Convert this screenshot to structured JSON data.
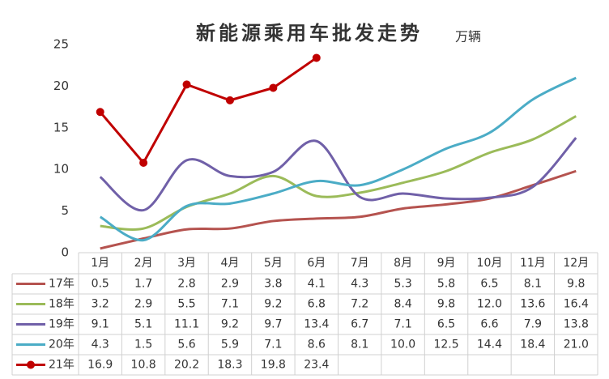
{
  "chart_data": {
    "type": "line",
    "title": "新能源乘用车批发走势",
    "subtitle": "万辆",
    "categories": [
      "1月",
      "2月",
      "3月",
      "4月",
      "5月",
      "6月",
      "7月",
      "8月",
      "9月",
      "10月",
      "11月",
      "12月"
    ],
    "series": [
      {
        "name": "17年",
        "color": "#b5534f",
        "smooth": true,
        "values": [
          0.5,
          1.7,
          2.8,
          2.9,
          3.8,
          4.1,
          4.3,
          5.3,
          5.8,
          6.5,
          8.1,
          9.8
        ]
      },
      {
        "name": "18年",
        "color": "#9bbb59",
        "smooth": true,
        "values": [
          3.2,
          2.9,
          5.5,
          7.1,
          9.2,
          6.8,
          7.2,
          8.4,
          9.8,
          12,
          13.6,
          16.4
        ],
        "value_labels": [
          "3.2",
          "2.9",
          "5.5",
          "7.1",
          "9.2",
          "6.8",
          "7.2",
          "8.4",
          "9.8",
          "12.0",
          "13.6",
          "16.4"
        ]
      },
      {
        "name": "19年",
        "color": "#7060a8",
        "smooth": true,
        "values": [
          9.1,
          5.1,
          11.1,
          9.2,
          9.7,
          13.4,
          6.7,
          7.1,
          6.5,
          6.6,
          7.9,
          13.8
        ]
      },
      {
        "name": "20年",
        "color": "#4bacc6",
        "smooth": true,
        "values": [
          4.3,
          1.5,
          5.6,
          5.9,
          7.1,
          8.6,
          8.1,
          10,
          12.5,
          14.4,
          18.4,
          21
        ],
        "value_labels": [
          "4.3",
          "1.5",
          "5.6",
          "5.9",
          "7.1",
          "8.6",
          "8.1",
          "10.0",
          "12.5",
          "14.4",
          "18.4",
          "21.0"
        ]
      },
      {
        "name": "21年",
        "color": "#c00000",
        "smooth": false,
        "markers": true,
        "values": [
          16.9,
          10.8,
          20.2,
          18.3,
          19.8,
          23.4,
          null,
          null,
          null,
          null,
          null,
          null
        ]
      }
    ],
    "ylim": [
      0,
      25
    ],
    "yticks": [
      0,
      5,
      10,
      15,
      20,
      25
    ],
    "grid": false
  }
}
